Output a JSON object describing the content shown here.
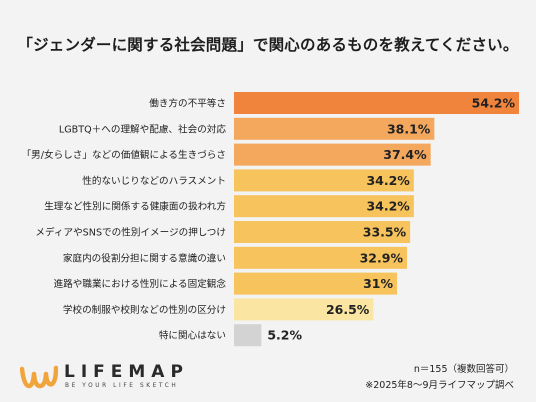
{
  "title": "「ジェンダーに関する社会問題」で関心のあるものを教えてください。",
  "logo": {
    "name": "LIFEMAP",
    "tagline": "BE YOUR LIFE SKETCH"
  },
  "notes": {
    "sample": "n＝155（複数回答可）",
    "source": "※2025年8〜9月ライフマップ調べ"
  },
  "colors": {
    "top_bar": "#f0843c",
    "upper_bars": "#f3a85e",
    "lower_bars": "#f7c35c",
    "pale_bar": "#fae6a2",
    "none_bar": "#d3d3d3",
    "background": "#f3f3f3"
  },
  "chart_data": {
    "type": "bar",
    "orientation": "horizontal",
    "categories": [
      "働き方の不平等さ",
      "LGBTQ＋への理解や配慮、社会の対応",
      "「男/女らしさ」などの価値観による生きづらさ",
      "性的ないじりなどのハラスメント",
      "生理など性別に関係する健康面の扱われ方",
      "メディアやSNSでの性別イメージの押しつけ",
      "家庭内の役割分担に関する意識の違い",
      "進路や職業における性別による固定観念",
      "学校の制服や校則などの性別の区分け",
      "特に関心はない"
    ],
    "values": [
      54.2,
      38.1,
      37.4,
      34.2,
      34.2,
      33.5,
      32.9,
      31,
      26.5,
      5.2
    ],
    "value_labels": [
      "54.2%",
      "38.1%",
      "37.4%",
      "34.2%",
      "34.2%",
      "33.5%",
      "32.9%",
      "31%",
      "26.5%",
      "5.2%"
    ],
    "bar_colors": [
      "#f0843c",
      "#f3a85e",
      "#f3a85e",
      "#f7c35c",
      "#f7c35c",
      "#f7c35c",
      "#f7c35c",
      "#f7c35c",
      "#fae6a2",
      "#d3d3d3"
    ],
    "xlim": [
      0,
      54.2
    ],
    "grid": false,
    "legend": "none"
  }
}
